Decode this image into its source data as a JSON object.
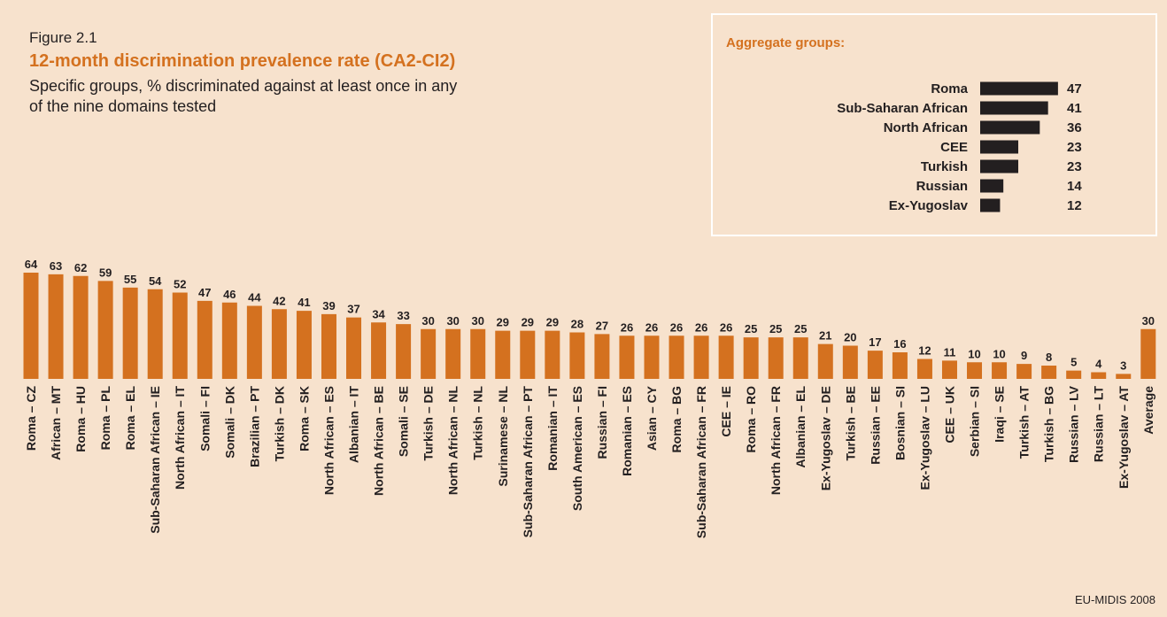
{
  "chart_data": [
    {
      "type": "bar",
      "figure": "Figure 2.1",
      "title": "12-month discrimination prevalence rate (CA2-CI2)",
      "subtitle": [
        "Specific groups, % discriminated against at least once in any",
        "of the nine domains tested"
      ],
      "source": "EU-MIDIS 2008",
      "color": "#d4711f",
      "categories": [
        "Roma – CZ",
        "African – MT",
        "Roma – HU",
        "Roma – PL",
        "Roma – EL",
        "Sub-Saharan African – IE",
        "North African – IT",
        "Somali – FI",
        "Somali – DK",
        "Brazilian – PT",
        "Turkish – DK",
        "Roma – SK",
        "North African – ES",
        "Albanian – IT",
        "North African – BE",
        "Somali – SE",
        "Turkish – DE",
        "North African – NL",
        "Turkish – NL",
        "Surinamese – NL",
        "Sub-Saharan African – PT",
        "Romanian – IT",
        "South American – ES",
        "Russian – FI",
        "Romanian – ES",
        "Asian – CY",
        "Roma – BG",
        "Sub-Saharan African – FR",
        "CEE – IE",
        "Roma – RO",
        "North African – FR",
        "Albanian – EL",
        "Ex-Yugoslav – DE",
        "Turkish – BE",
        "Russian – EE",
        "Bosnian – SI",
        "Ex-Yugoslav – LU",
        "CEE – UK",
        "Serbian – SI",
        "Iraqi – SE",
        "Turkish – AT",
        "Turkish – BG",
        "Russian – LV",
        "Russian – LT",
        "Ex-Yugoslav – AT",
        "Average"
      ],
      "values": [
        64,
        63,
        62,
        59,
        55,
        54,
        52,
        47,
        46,
        44,
        42,
        41,
        39,
        37,
        34,
        33,
        30,
        30,
        30,
        29,
        29,
        29,
        28,
        27,
        26,
        26,
        26,
        26,
        26,
        25,
        25,
        25,
        21,
        20,
        17,
        16,
        12,
        11,
        10,
        10,
        9,
        8,
        5,
        4,
        3,
        30
      ]
    },
    {
      "type": "hbar",
      "title": "Aggregate groups:",
      "color": "#231f20",
      "categories": [
        "Roma",
        "Sub-Saharan African",
        "North African",
        "CEE",
        "Turkish",
        "Russian",
        "Ex-Yugoslav"
      ],
      "values": [
        47,
        41,
        36,
        23,
        23,
        14,
        12
      ]
    }
  ]
}
